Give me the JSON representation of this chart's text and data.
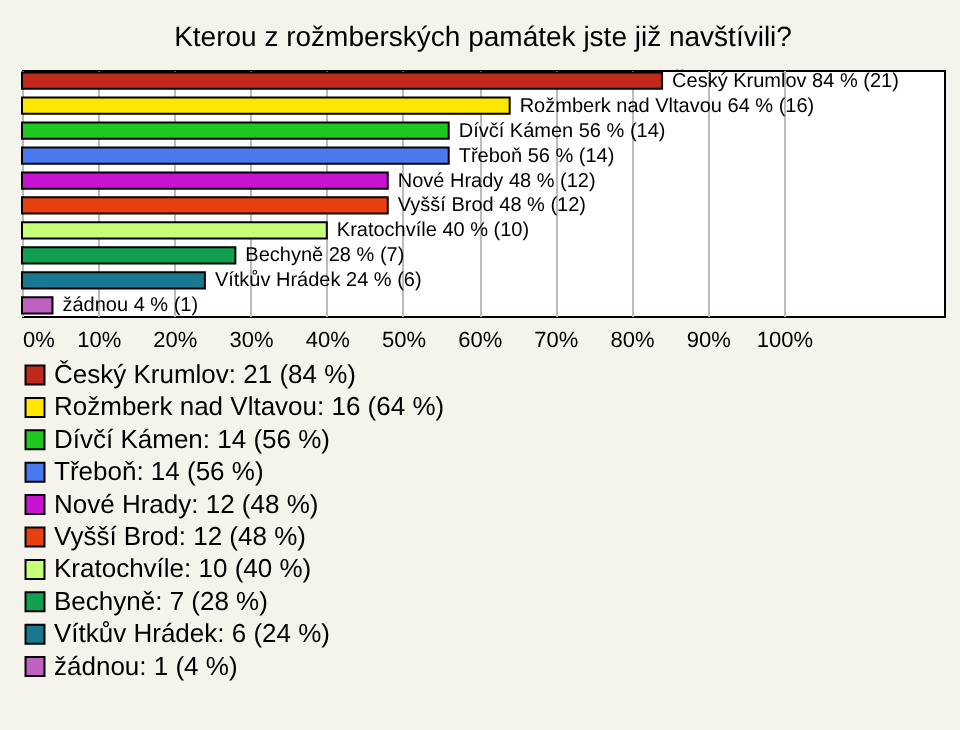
{
  "chart_data": {
    "type": "bar",
    "orientation": "horizontal",
    "title": "Kterou z rožmberských památek jste již navštívili?",
    "categories": [
      null,
      null,
      null,
      null,
      null,
      null,
      null,
      null,
      null,
      null
    ],
    "series": [
      {
        "name": "Český Krumlov: 21 (84 %)",
        "color": "#c0281c",
        "values": [
          84,
          null,
          null,
          null,
          null,
          null,
          null,
          null,
          null,
          null
        ],
        "value_labels": [
          "Český Krumlov 84 % (21)",
          null,
          null,
          null,
          null,
          null,
          null,
          null,
          null,
          null
        ]
      },
      {
        "name": "Rožmberk nad Vltavou: 16 (64 %)",
        "color": "#ffe600",
        "values": [
          null,
          64,
          null,
          null,
          null,
          null,
          null,
          null,
          null,
          null
        ],
        "value_labels": [
          null,
          "Rožmberk nad Vltavou 64 % (16)",
          null,
          null,
          null,
          null,
          null,
          null,
          null,
          null
        ]
      },
      {
        "name": "Dívčí Kámen: 14 (56 %)",
        "color": "#1ec81e",
        "values": [
          null,
          null,
          56,
          null,
          null,
          null,
          null,
          null,
          null,
          null
        ],
        "value_labels": [
          null,
          null,
          "Dívčí Kámen 56 % (14)",
          null,
          null,
          null,
          null,
          null,
          null,
          null
        ]
      },
      {
        "name": "Třeboň: 14 (56 %)",
        "color": "#4a78f0",
        "values": [
          null,
          null,
          null,
          56,
          null,
          null,
          null,
          null,
          null,
          null
        ],
        "value_labels": [
          null,
          null,
          null,
          "Třeboň 56 % (14)",
          null,
          null,
          null,
          null,
          null,
          null
        ]
      },
      {
        "name": "Nové Hrady: 12 (48 %)",
        "color": "#c814d2",
        "values": [
          null,
          null,
          null,
          null,
          48,
          null,
          null,
          null,
          null,
          null
        ],
        "value_labels": [
          null,
          null,
          null,
          null,
          "Nové Hrady 48 % (12)",
          null,
          null,
          null,
          null,
          null
        ]
      },
      {
        "name": "Vyšší Brod: 12 (48 %)",
        "color": "#e84010",
        "values": [
          null,
          null,
          null,
          null,
          null,
          48,
          null,
          null,
          null,
          null
        ],
        "value_labels": [
          null,
          null,
          null,
          null,
          null,
          "Vyšší Brod 48 % (12)",
          null,
          null,
          null,
          null
        ]
      },
      {
        "name": "Kratochvíle: 10 (40 %)",
        "color": "#c8ff78",
        "values": [
          null,
          null,
          null,
          null,
          null,
          null,
          40,
          null,
          null,
          null
        ],
        "value_labels": [
          null,
          null,
          null,
          null,
          null,
          null,
          "Kratochvíle 40 % (10)",
          null,
          null,
          null
        ]
      },
      {
        "name": "Bechyně: 7 (28 %)",
        "color": "#10a050",
        "values": [
          null,
          null,
          null,
          null,
          null,
          null,
          null,
          28,
          null,
          null
        ],
        "value_labels": [
          null,
          null,
          null,
          null,
          null,
          null,
          null,
          "Bechyně 28 % (7)",
          null,
          null
        ]
      },
      {
        "name": "Vítkův Hrádek: 6 (24 %)",
        "color": "#187890",
        "values": [
          null,
          null,
          null,
          null,
          null,
          null,
          null,
          null,
          24,
          null
        ],
        "value_labels": [
          null,
          null,
          null,
          null,
          null,
          null,
          null,
          null,
          "Vítkův Hrádek 24 % (6)",
          null
        ]
      },
      {
        "name": "žádnou: 1 (4 %)",
        "color": "#c060c0",
        "values": [
          null,
          null,
          null,
          null,
          null,
          null,
          null,
          null,
          null,
          4
        ],
        "value_labels": [
          null,
          null,
          null,
          null,
          null,
          null,
          null,
          null,
          null,
          "žádnou 4 % (1)"
        ]
      }
    ],
    "xlim": [
      0,
      121
    ],
    "xticks": [
      {
        "value": 0,
        "label": "0%"
      },
      {
        "value": 10,
        "label": "10%"
      },
      {
        "value": 20,
        "label": "20%"
      },
      {
        "value": 30,
        "label": "30%"
      },
      {
        "value": 40,
        "label": "40%"
      },
      {
        "value": 50,
        "label": "50%"
      },
      {
        "value": 60,
        "label": "60%"
      },
      {
        "value": 70,
        "label": "70%"
      },
      {
        "value": 80,
        "label": "80%"
      },
      {
        "value": 90,
        "label": "90%"
      },
      {
        "value": 100,
        "label": "100%"
      }
    ],
    "grid": "x",
    "legend": "bottom"
  }
}
